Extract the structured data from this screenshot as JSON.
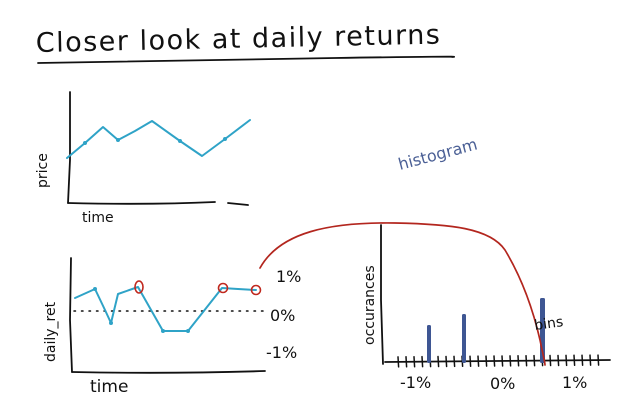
{
  "title": "Closer look at daily returns",
  "price_chart": {
    "ylabel": "price",
    "xlabel": "time"
  },
  "returns_chart": {
    "ylabel": "daily_ret",
    "xlabel": "time",
    "levels": [
      "1%",
      "0%",
      "-1%"
    ]
  },
  "histogram": {
    "label": "histogram",
    "ylabel": "occurances",
    "bins_label": "bins",
    "x_ticks": [
      "-1%",
      "0%",
      "1%"
    ]
  },
  "colors": {
    "ink": "#111111",
    "series": "#2fa3c7",
    "highlight": "#c0281e",
    "histogram": "#3e5693",
    "histogram_label": "#4a5f95"
  }
}
